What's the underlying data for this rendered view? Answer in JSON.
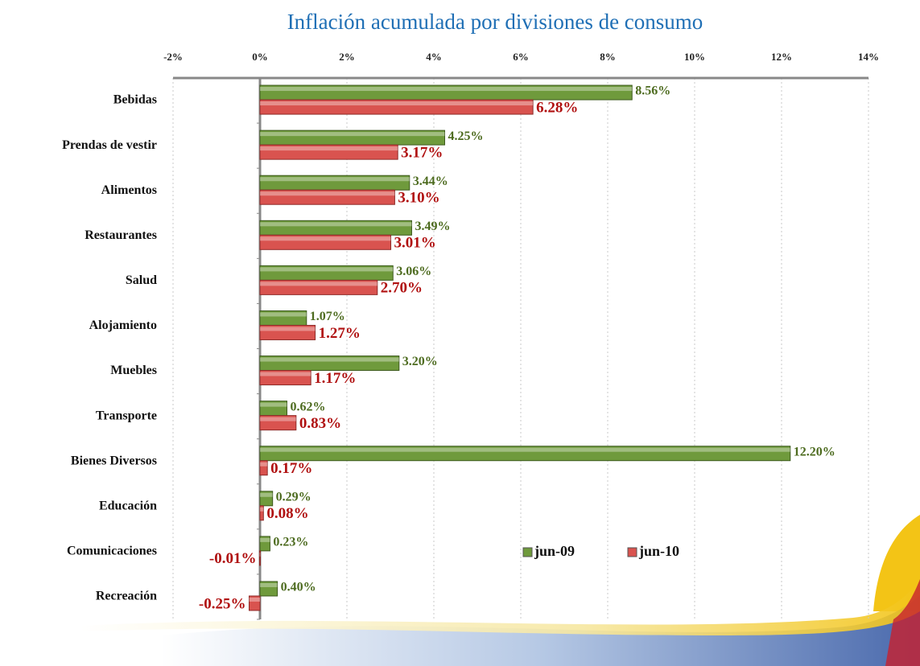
{
  "chart_data": {
    "type": "hbar",
    "title": "Inflación acumulada por divisiones de consumo",
    "categories": [
      "Bebidas",
      "Prendas de vestir",
      "Alimentos",
      "Restaurantes",
      "Salud",
      "Alojamiento",
      "Muebles",
      "Transporte",
      "Bienes Diversos",
      "Educación",
      "Comunicaciones",
      "Recreación"
    ],
    "series": [
      {
        "name": "jun-09",
        "color": "#6f9a3c",
        "values": [
          8.56,
          4.25,
          3.44,
          3.49,
          3.06,
          1.07,
          3.2,
          0.62,
          12.2,
          0.29,
          0.23,
          0.4
        ],
        "value_labels": [
          "8.56%",
          "4.25%",
          "3.44%",
          "3.49%",
          "3.06%",
          "1.07%",
          "3.20%",
          "0.62%",
          "12.20%",
          "0.29%",
          "0.23%",
          "0.40%"
        ]
      },
      {
        "name": "jun-10",
        "color": "#d9534f",
        "values": [
          6.28,
          3.17,
          3.1,
          3.01,
          2.7,
          1.27,
          1.17,
          0.83,
          0.17,
          0.08,
          -0.01,
          -0.25
        ],
        "value_labels": [
          "6.28%",
          "3.17%",
          "3.10%",
          "3.01%",
          "2.70%",
          "1.27%",
          "1.17%",
          "0.83%",
          "0.17%",
          "0.08%",
          "-0.01%",
          "-0.25%"
        ]
      }
    ],
    "xlim": [
      -2,
      14
    ],
    "xticks": [
      {
        "value": -2,
        "label": "-2%"
      },
      {
        "value": 0,
        "label": "0%"
      },
      {
        "value": 2,
        "label": "2%"
      },
      {
        "value": 4,
        "label": "4%"
      },
      {
        "value": 6,
        "label": "6%"
      },
      {
        "value": 8,
        "label": "8%"
      },
      {
        "value": 10,
        "label": "10%"
      },
      {
        "value": 12,
        "label": "12%"
      },
      {
        "value": 14,
        "label": "14%"
      }
    ],
    "grid": true,
    "legend": "lower-right"
  }
}
